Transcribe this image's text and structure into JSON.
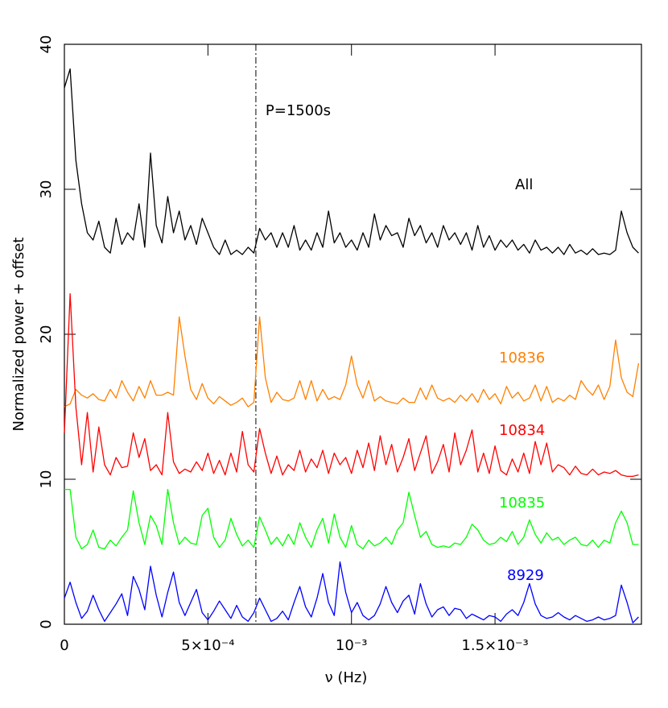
{
  "chart_data": {
    "type": "line",
    "xlabel": "ν (Hz)",
    "ylabel": "Normalized power + offset",
    "xlim": [
      0,
      0.00201
    ],
    "ylim": [
      0,
      40
    ],
    "xticks": [
      0,
      {
        "value": 0.0005,
        "label": "5×10⁻⁴"
      },
      {
        "value": 0.001,
        "label": "10⁻³"
      },
      {
        "value": 0.0015,
        "label": "1.5×10⁻³"
      }
    ],
    "yticks": [
      0,
      10,
      20,
      30,
      40
    ],
    "vline": {
      "x": 0.000667,
      "label": "P=1500s"
    },
    "x": [
      0,
      2e-05,
      4e-05,
      6e-05,
      8e-05,
      0.0001,
      0.00012,
      0.00014,
      0.00016,
      0.00018,
      0.0002,
      0.00022,
      0.00024,
      0.00026,
      0.00028,
      0.0003,
      0.00032,
      0.00034,
      0.00036,
      0.00038,
      0.0004,
      0.00042,
      0.00044,
      0.00046,
      0.00048,
      0.0005,
      0.00052,
      0.00054,
      0.00056,
      0.00058,
      0.0006,
      0.00062,
      0.00064,
      0.00066,
      0.00068,
      0.0007,
      0.00072,
      0.00074,
      0.00076,
      0.00078,
      0.0008,
      0.00082,
      0.00084,
      0.00086,
      0.00088,
      0.0009,
      0.00092,
      0.00094,
      0.00096,
      0.00098,
      0.001,
      0.00102,
      0.00104,
      0.00106,
      0.00108,
      0.0011,
      0.00112,
      0.00114,
      0.00116,
      0.00118,
      0.0012,
      0.00122,
      0.00124,
      0.00126,
      0.00128,
      0.0013,
      0.00132,
      0.00134,
      0.00136,
      0.00138,
      0.0014,
      0.00142,
      0.00144,
      0.00146,
      0.00148,
      0.0015,
      0.00152,
      0.00154,
      0.00156,
      0.00158,
      0.0016,
      0.00162,
      0.00164,
      0.00166,
      0.00168,
      0.0017,
      0.00172,
      0.00174,
      0.00176,
      0.00178,
      0.0018,
      0.00182,
      0.00184,
      0.00186,
      0.00188,
      0.0019,
      0.00192,
      0.00194,
      0.00196,
      0.00198,
      0.002
    ],
    "series": [
      {
        "name": "All",
        "color": "#000000",
        "values": [
          37.0,
          38.3,
          32.0,
          29.0,
          27.0,
          26.5,
          27.8,
          26.0,
          25.6,
          28.0,
          26.2,
          27.0,
          26.5,
          29.0,
          26.0,
          32.5,
          27.5,
          26.3,
          29.5,
          27.0,
          28.5,
          26.5,
          27.5,
          26.2,
          28.0,
          27.0,
          26.0,
          25.5,
          26.5,
          25.5,
          25.8,
          25.5,
          26.0,
          25.6,
          27.3,
          26.5,
          27.0,
          26.0,
          27.0,
          26.0,
          27.5,
          25.8,
          26.5,
          25.8,
          27.0,
          26.0,
          28.5,
          26.3,
          27.0,
          26.0,
          26.5,
          25.8,
          27.0,
          26.0,
          28.3,
          26.5,
          27.5,
          26.8,
          27.0,
          26.0,
          28.0,
          26.8,
          27.5,
          26.3,
          27.0,
          26.0,
          27.5,
          26.5,
          27.0,
          26.2,
          27.0,
          25.8,
          27.5,
          26.0,
          26.8,
          25.8,
          26.5,
          26.0,
          26.5,
          25.8,
          26.2,
          25.6,
          26.5,
          25.8,
          26.0,
          25.6,
          26.0,
          25.5,
          26.2,
          25.6,
          25.8,
          25.5,
          25.9,
          25.5,
          25.6,
          25.5,
          25.8,
          28.5,
          27.0,
          26.0,
          25.6
        ]
      },
      {
        "name": "10836",
        "color": "#ff8000",
        "values": [
          15.0,
          15.2,
          16.2,
          15.8,
          15.6,
          15.9,
          15.5,
          15.4,
          16.2,
          15.6,
          16.8,
          16.0,
          15.4,
          16.4,
          15.6,
          16.8,
          15.8,
          15.8,
          16.0,
          15.8,
          21.2,
          18.5,
          16.2,
          15.5,
          16.6,
          15.6,
          15.2,
          15.7,
          15.4,
          15.1,
          15.3,
          15.6,
          15.0,
          15.3,
          21.2,
          17.0,
          15.3,
          16.0,
          15.5,
          15.4,
          15.6,
          16.8,
          15.5,
          16.8,
          15.4,
          16.2,
          15.5,
          15.7,
          15.5,
          16.5,
          18.5,
          16.5,
          15.6,
          16.8,
          15.4,
          15.7,
          15.4,
          15.3,
          15.2,
          15.6,
          15.3,
          15.3,
          16.3,
          15.5,
          16.5,
          15.6,
          15.4,
          15.6,
          15.3,
          15.8,
          15.4,
          15.9,
          15.3,
          16.2,
          15.5,
          15.9,
          15.2,
          16.4,
          15.6,
          16.0,
          15.4,
          15.6,
          16.5,
          15.4,
          16.4,
          15.3,
          15.6,
          15.4,
          15.8,
          15.5,
          16.8,
          16.2,
          15.8,
          16.5,
          15.5,
          16.4,
          19.6,
          17.0,
          16.0,
          15.7,
          18.0
        ]
      },
      {
        "name": "10834",
        "color": "#ff0000",
        "values": [
          13.2,
          22.8,
          15.0,
          11.0,
          14.6,
          10.5,
          13.6,
          11.0,
          10.3,
          11.5,
          10.8,
          10.9,
          13.2,
          11.5,
          12.8,
          10.6,
          11.0,
          10.3,
          14.6,
          11.2,
          10.4,
          10.7,
          10.5,
          11.2,
          10.6,
          11.8,
          10.4,
          11.3,
          10.3,
          11.8,
          10.5,
          13.3,
          11.0,
          10.5,
          13.5,
          11.8,
          10.4,
          11.6,
          10.3,
          11.0,
          10.6,
          12.0,
          10.5,
          11.4,
          10.8,
          12.0,
          10.4,
          11.8,
          11.0,
          11.5,
          10.4,
          12.0,
          10.8,
          12.5,
          10.6,
          13.0,
          11.0,
          12.4,
          10.5,
          11.5,
          12.8,
          10.6,
          11.8,
          13.0,
          10.4,
          11.2,
          12.4,
          10.5,
          13.2,
          11.0,
          12.0,
          13.4,
          10.5,
          11.8,
          10.4,
          12.3,
          10.6,
          10.3,
          11.4,
          10.5,
          11.8,
          10.4,
          12.6,
          11.0,
          12.5,
          10.5,
          11.0,
          10.8,
          10.3,
          10.9,
          10.4,
          10.3,
          10.7,
          10.3,
          10.5,
          10.4,
          10.6,
          10.3,
          10.2,
          10.2,
          10.3
        ]
      },
      {
        "name": "10835",
        "color": "#00ff00",
        "values": [
          9.3,
          9.3,
          6.0,
          5.2,
          5.5,
          6.5,
          5.3,
          5.2,
          5.8,
          5.4,
          6.0,
          6.5,
          9.2,
          7.0,
          5.5,
          7.5,
          6.8,
          5.5,
          9.3,
          7.0,
          5.5,
          6.0,
          5.6,
          5.5,
          7.5,
          8.0,
          6.0,
          5.3,
          5.8,
          7.3,
          6.2,
          5.4,
          5.8,
          5.3,
          7.4,
          6.5,
          5.5,
          6.0,
          5.4,
          6.2,
          5.5,
          7.0,
          6.0,
          5.3,
          6.5,
          7.3,
          5.6,
          7.6,
          6.0,
          5.3,
          6.8,
          5.5,
          5.2,
          5.8,
          5.4,
          5.6,
          6.0,
          5.5,
          6.5,
          7.0,
          9.1,
          7.5,
          6.0,
          6.4,
          5.5,
          5.3,
          5.4,
          5.3,
          5.6,
          5.5,
          6.0,
          6.9,
          6.5,
          5.8,
          5.5,
          5.6,
          6.0,
          5.7,
          6.4,
          5.5,
          6.0,
          7.2,
          6.2,
          5.6,
          6.3,
          5.8,
          6.0,
          5.5,
          5.8,
          6.0,
          5.5,
          5.4,
          5.8,
          5.3,
          5.8,
          5.6,
          7.0,
          7.8,
          7.0,
          5.5,
          5.5
        ]
      },
      {
        "name": "8929",
        "color": "#0000ff",
        "values": [
          1.8,
          2.9,
          1.5,
          0.4,
          0.9,
          2.0,
          1.0,
          0.2,
          0.8,
          1.4,
          2.1,
          0.6,
          3.3,
          2.4,
          1.0,
          4.0,
          2.0,
          0.5,
          2.2,
          3.6,
          1.5,
          0.6,
          1.5,
          2.4,
          0.8,
          0.3,
          0.9,
          1.6,
          1.0,
          0.4,
          1.3,
          0.5,
          0.2,
          0.8,
          1.8,
          1.0,
          0.2,
          0.4,
          0.9,
          0.3,
          1.5,
          2.6,
          1.2,
          0.5,
          1.8,
          3.5,
          1.5,
          0.6,
          4.3,
          2.2,
          0.8,
          1.5,
          0.6,
          0.3,
          0.6,
          1.4,
          2.6,
          1.5,
          0.8,
          1.6,
          2.0,
          0.7,
          2.8,
          1.4,
          0.5,
          1.0,
          1.2,
          0.6,
          1.1,
          1.0,
          0.4,
          0.7,
          0.5,
          0.3,
          0.6,
          0.5,
          0.2,
          0.7,
          1.0,
          0.6,
          1.5,
          2.8,
          1.4,
          0.6,
          0.4,
          0.5,
          0.8,
          0.5,
          0.3,
          0.6,
          0.4,
          0.2,
          0.3,
          0.5,
          0.3,
          0.4,
          0.6,
          2.7,
          1.5,
          0.1,
          0.5
        ]
      }
    ]
  }
}
